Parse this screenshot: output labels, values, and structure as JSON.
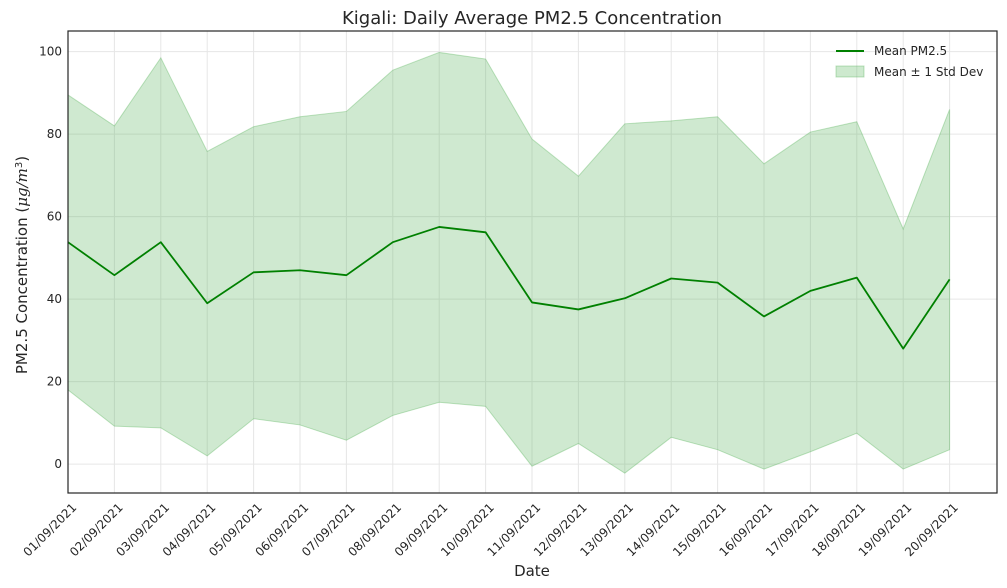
{
  "chart_data": {
    "type": "line",
    "title": "Kigali: Daily Average PM2.5 Concentration",
    "xlabel": "Date",
    "ylabel_main": "PM2.5 Concentration (",
    "ylabel_unit_mu": "μg",
    "ylabel_unit_slash": "/",
    "ylabel_unit_m": "m",
    "ylabel_unit_exp": "3",
    "ylabel_close": ")",
    "ylim": [
      -7,
      105
    ],
    "yticks": [
      0,
      20,
      40,
      60,
      80,
      100
    ],
    "grid": true,
    "legend_position": "top-right",
    "categories": [
      "01/09/2021",
      "02/09/2021",
      "03/09/2021",
      "04/09/2021",
      "05/09/2021",
      "06/09/2021",
      "07/09/2021",
      "08/09/2021",
      "09/09/2021",
      "10/09/2021",
      "11/09/2021",
      "12/09/2021",
      "13/09/2021",
      "14/09/2021",
      "15/09/2021",
      "16/09/2021",
      "17/09/2021",
      "18/09/2021",
      "19/09/2021",
      "20/09/2021"
    ],
    "series": [
      {
        "name": "Mean PM2.5",
        "color": "#008000",
        "values": [
          53.8,
          45.8,
          53.8,
          39.0,
          46.5,
          47.0,
          45.8,
          53.8,
          57.5,
          56.2,
          39.2,
          37.5,
          40.2,
          45.0,
          44.0,
          35.8,
          42.0,
          45.2,
          28.0,
          44.8
        ]
      },
      {
        "name": "Mean ± 1 Std Dev",
        "type": "band",
        "color": "#4caf50",
        "upper": [
          89.5,
          82.0,
          98.5,
          75.8,
          81.8,
          84.2,
          85.5,
          95.5,
          99.8,
          98.2,
          78.8,
          69.8,
          82.5,
          83.2,
          84.2,
          72.8,
          80.5,
          83.0,
          57.0,
          86.0
        ],
        "lower": [
          18.0,
          9.2,
          8.8,
          2.0,
          11.0,
          9.5,
          5.8,
          11.8,
          15.0,
          14.0,
          -0.5,
          5.0,
          -2.2,
          6.5,
          3.5,
          -1.2,
          3.0,
          7.5,
          -1.2,
          3.5
        ]
      }
    ]
  }
}
